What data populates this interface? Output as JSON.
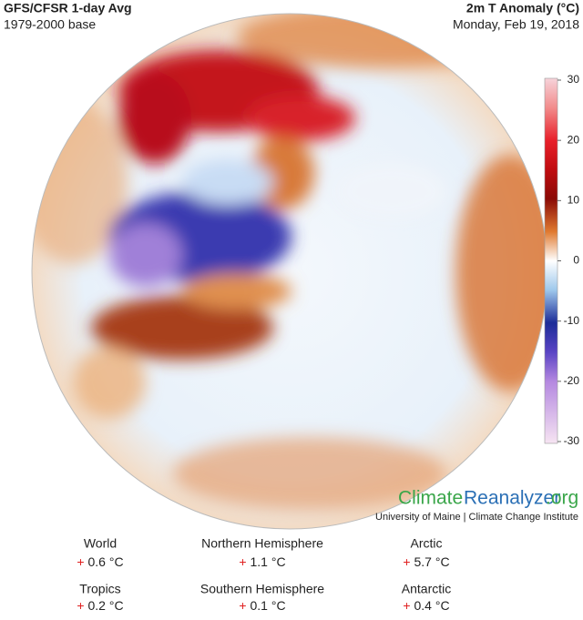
{
  "header": {
    "title": "GFS/CFSR 1-day Avg",
    "subtitle": "1979-2000 base",
    "variable": "2m T Anomaly (°C)",
    "date": "Monday, Feb 19, 2018"
  },
  "colorbar": {
    "range": [
      -30,
      30
    ],
    "ticks": [
      30,
      20,
      10,
      0,
      -10,
      -20,
      -30
    ]
  },
  "logo": {
    "part_1": "Climate",
    "part_2": "Reanalyzer",
    "part_3": ".org",
    "tagline": "University of Maine | Climate Change Institute"
  },
  "stats": [
    {
      "label": "World",
      "sign": "+",
      "value": "0.6 °C"
    },
    {
      "label": "Northern Hemisphere",
      "sign": "+",
      "value": "1.1 °C"
    },
    {
      "label": "Arctic",
      "sign": "+",
      "value": "5.7 °C"
    },
    {
      "label": "Tropics",
      "sign": "+",
      "value": "0.2 °C"
    },
    {
      "label": "Southern Hemisphere",
      "sign": "+",
      "value": "0.1 °C"
    },
    {
      "label": "Antarctic",
      "sign": "+",
      "value": "0.4 °C"
    }
  ]
}
